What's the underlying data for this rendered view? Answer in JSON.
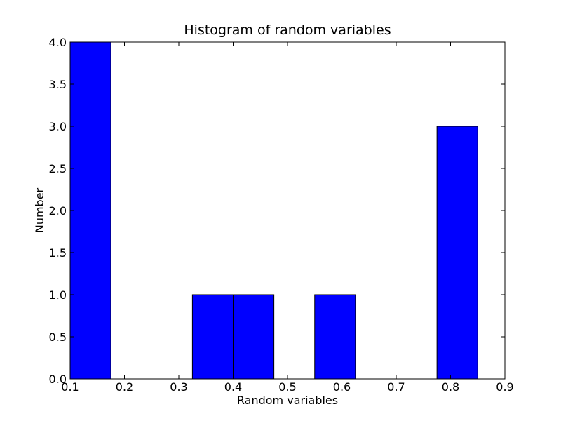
{
  "chart_data": {
    "type": "bar",
    "title": "Histogram of random variables",
    "xlabel": "Random variables",
    "ylabel": "Number",
    "xlim": [
      0.1,
      0.9
    ],
    "ylim": [
      0.0,
      4.0
    ],
    "xticks": [
      "0.1",
      "0.2",
      "0.3",
      "0.4",
      "0.5",
      "0.6",
      "0.7",
      "0.8",
      "0.9"
    ],
    "yticks": [
      "0.0",
      "0.5",
      "1.0",
      "1.5",
      "2.0",
      "2.5",
      "3.0",
      "3.5",
      "4.0"
    ],
    "bins": [
      {
        "start": 0.1,
        "end": 0.175,
        "value": 4
      },
      {
        "start": 0.325,
        "end": 0.4,
        "value": 1
      },
      {
        "start": 0.4,
        "end": 0.475,
        "value": 1
      },
      {
        "start": 0.55,
        "end": 0.625,
        "value": 1
      },
      {
        "start": 0.775,
        "end": 0.85,
        "value": 3
      }
    ],
    "bar_color": "#0000ff",
    "edge_color": "#000000",
    "grid": false
  }
}
